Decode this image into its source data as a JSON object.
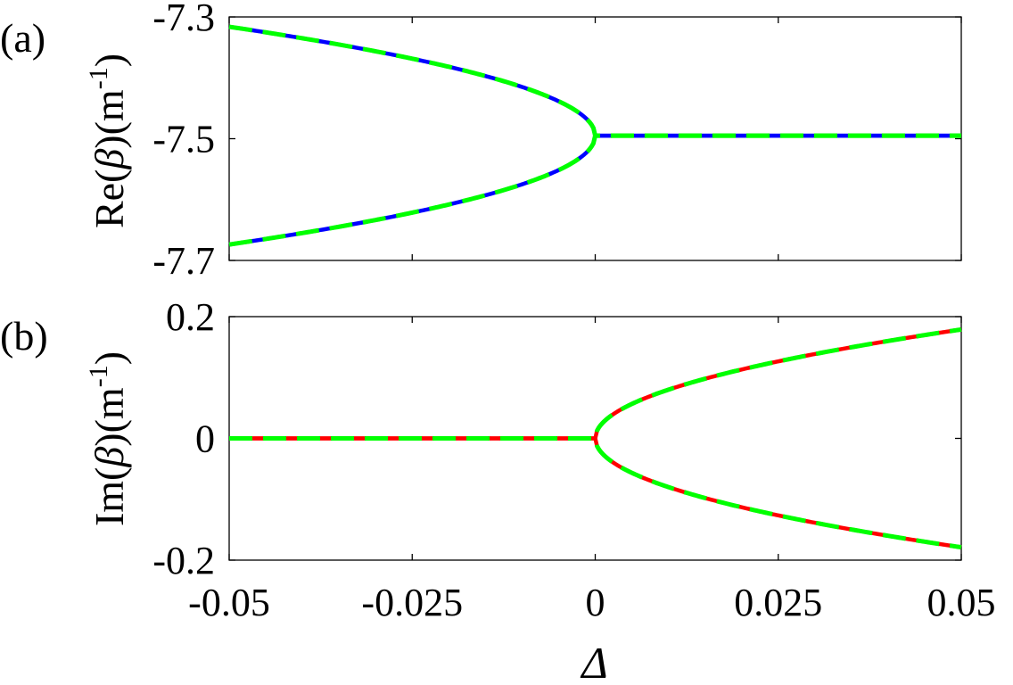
{
  "chart_data": [
    {
      "type": "line",
      "panel_label": "(a)",
      "ylabel_main": "Re(",
      "ylabel_symbol": "β",
      "ylabel_tail": ")(m",
      "ylabel_sup": "-1",
      "ylabel_close": ")",
      "xlim": [
        -0.05,
        0.05
      ],
      "ylim": [
        -7.7,
        -7.3
      ],
      "xticks": [
        -0.05,
        -0.025,
        0,
        0.025,
        0.05
      ],
      "yticks": [
        -7.7,
        -7.5,
        -7.3
      ],
      "ytick_labels": [
        "-7.7",
        "-7.5",
        "-7.3"
      ],
      "grid": false,
      "series": [
        {
          "color": "#0000ff",
          "style": "solid",
          "kind": "re",
          "branch": 1
        },
        {
          "color": "#0000ff",
          "style": "solid",
          "kind": "re",
          "branch": -1
        },
        {
          "color": "#00ff00",
          "style": "dashed",
          "kind": "re",
          "branch": 1
        },
        {
          "color": "#00ff00",
          "style": "dashed",
          "kind": "re",
          "branch": -1
        }
      ],
      "model": {
        "center": -7.495,
        "coef": 0.8,
        "exceptional_point": 0
      }
    },
    {
      "type": "line",
      "panel_label": "(b)",
      "ylabel_main": "Im(",
      "ylabel_symbol": "β",
      "ylabel_tail": ")(m",
      "ylabel_sup": "-1",
      "ylabel_close": ")",
      "xlim": [
        -0.05,
        0.05
      ],
      "ylim": [
        -0.2,
        0.2
      ],
      "xticks": [
        -0.05,
        -0.025,
        0,
        0.025,
        0.05
      ],
      "xtick_labels": [
        "-0.05",
        "-0.025",
        "0",
        "0.025",
        "0.05"
      ],
      "yticks": [
        -0.2,
        0,
        0.2
      ],
      "ytick_labels": [
        "-0.2",
        "0",
        "0.2"
      ],
      "xlabel": "Δ",
      "grid": false,
      "series": [
        {
          "color": "#ff0000",
          "style": "solid",
          "kind": "im",
          "branch": 1
        },
        {
          "color": "#ff0000",
          "style": "solid",
          "kind": "im",
          "branch": -1
        },
        {
          "color": "#00ff00",
          "style": "dashed",
          "kind": "im",
          "branch": 1
        },
        {
          "color": "#00ff00",
          "style": "dashed",
          "kind": "im",
          "branch": -1
        }
      ],
      "model": {
        "center": 0,
        "coef": 0.8,
        "exceptional_point": 0
      }
    }
  ]
}
